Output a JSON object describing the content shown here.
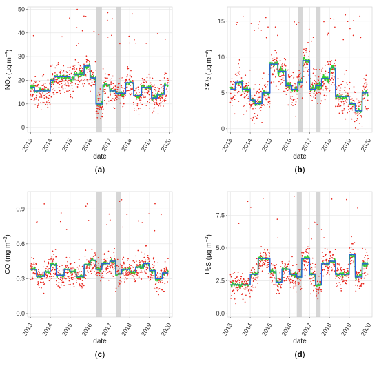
{
  "figure": {
    "background": "#ffffff",
    "colors": {
      "daily_points": "#e8231a",
      "fit_green": "#33cc33",
      "fit_blue": "#2b5fd9",
      "shaded_band": "#c8c8c8",
      "grid": "#e6e6e6"
    }
  },
  "chart_data": [
    {
      "panel": "a",
      "label_open": "(",
      "label_letter": "a",
      "label_close": ")",
      "type": "scatter",
      "xlabel": "date",
      "ylabel_main": "NO",
      "ylabel_sub": "x",
      "ylabel_unit": " (μg m",
      "ylabel_exp": "−3",
      "ylabel_close": ")",
      "xlim": [
        2012.85,
        2020.15
      ],
      "ylim": [
        -2,
        51
      ],
      "xticks": [
        2013,
        2014,
        2015,
        2016,
        2017,
        2018,
        2019,
        2020
      ],
      "yticks": [
        0,
        10,
        20,
        30,
        40,
        50
      ],
      "ytick_labels": [
        "0",
        "10",
        "20",
        "30",
        "40",
        "50"
      ],
      "shaded_periods": [
        [
          2016.3,
          2016.6
        ],
        [
          2017.3,
          2017.55
        ]
      ],
      "steps": [
        [
          2013.0,
          2013.2,
          17
        ],
        [
          2013.2,
          2014.0,
          15.5
        ],
        [
          2014.0,
          2014.2,
          20
        ],
        [
          2014.2,
          2015.0,
          21.5
        ],
        [
          2015.0,
          2015.2,
          20.5
        ],
        [
          2015.2,
          2015.7,
          22.5
        ],
        [
          2015.7,
          2016.0,
          26
        ],
        [
          2016.0,
          2016.3,
          21
        ],
        [
          2016.3,
          2016.65,
          10
        ],
        [
          2016.65,
          2017.0,
          18
        ],
        [
          2017.0,
          2017.3,
          15.5
        ],
        [
          2017.3,
          2017.8,
          14.5
        ],
        [
          2017.8,
          2018.2,
          19
        ],
        [
          2018.2,
          2018.6,
          13.5
        ],
        [
          2018.6,
          2019.1,
          17
        ],
        [
          2019.1,
          2019.4,
          12.5
        ],
        [
          2019.4,
          2019.75,
          14
        ],
        [
          2019.75,
          2019.95,
          18
        ]
      ],
      "scatter_params": {
        "spread": 6,
        "high_outliers": [
          35,
          50
        ],
        "count": 700,
        "seed": 11
      }
    },
    {
      "panel": "b",
      "label_open": "(",
      "label_letter": "b",
      "label_close": ")",
      "type": "scatter",
      "xlabel": "date",
      "ylabel_main": "SO",
      "ylabel_sub": "2",
      "ylabel_unit": " (μg m",
      "ylabel_exp": "−3",
      "ylabel_close": ")",
      "xlim": [
        2012.85,
        2020.15
      ],
      "ylim": [
        -0.5,
        17
      ],
      "xticks": [
        2013,
        2014,
        2015,
        2016,
        2017,
        2018,
        2019,
        2020
      ],
      "yticks": [
        0,
        5,
        10,
        15
      ],
      "ytick_labels": [
        "0",
        "5",
        "10",
        "15"
      ],
      "shaded_periods": [
        [
          2016.4,
          2016.65
        ],
        [
          2017.3,
          2017.55
        ]
      ],
      "steps": [
        [
          2013.0,
          2013.25,
          5.5
        ],
        [
          2013.25,
          2013.6,
          6.5
        ],
        [
          2013.6,
          2014.0,
          5.5
        ],
        [
          2014.0,
          2014.25,
          4.0
        ],
        [
          2014.25,
          2014.6,
          3.5
        ],
        [
          2014.6,
          2015.0,
          5.0
        ],
        [
          2015.0,
          2015.4,
          9.0
        ],
        [
          2015.4,
          2015.8,
          8.0
        ],
        [
          2015.8,
          2016.1,
          6.0
        ],
        [
          2016.1,
          2016.4,
          5.5
        ],
        [
          2016.4,
          2016.65,
          6.5
        ],
        [
          2016.65,
          2017.0,
          9.5
        ],
        [
          2017.0,
          2017.3,
          5.5
        ],
        [
          2017.3,
          2017.6,
          6.0
        ],
        [
          2017.6,
          2018.0,
          7.0
        ],
        [
          2018.0,
          2018.3,
          8.5
        ],
        [
          2018.3,
          2018.6,
          4.5
        ],
        [
          2018.6,
          2019.0,
          4.5
        ],
        [
          2019.0,
          2019.3,
          3.5
        ],
        [
          2019.3,
          2019.65,
          2.5
        ],
        [
          2019.65,
          2019.95,
          5.0
        ]
      ],
      "scatter_params": {
        "spread": 2.3,
        "high_outliers": [
          12,
          16
        ],
        "count": 700,
        "seed": 23
      }
    },
    {
      "panel": "c",
      "label_open": "(",
      "label_letter": "c",
      "label_close": ")",
      "type": "scatter",
      "xlabel": "date",
      "ylabel_main": "CO",
      "ylabel_sub": "",
      "ylabel_unit": " (mg m",
      "ylabel_exp": "−3",
      "ylabel_close": ")",
      "xlim": [
        2012.85,
        2020.15
      ],
      "ylim": [
        -0.03,
        1.05
      ],
      "xticks": [
        2013,
        2014,
        2015,
        2016,
        2017,
        2018,
        2019,
        2020
      ],
      "yticks": [
        0.0,
        0.3,
        0.6,
        0.9
      ],
      "ytick_labels": [
        "0.0",
        "0.3",
        "0.6",
        "0.9"
      ],
      "shaded_periods": [
        [
          2016.3,
          2016.6
        ],
        [
          2017.3,
          2017.55
        ]
      ],
      "steps": [
        [
          2013.0,
          2013.3,
          0.38
        ],
        [
          2013.3,
          2013.7,
          0.32
        ],
        [
          2013.7,
          2014.0,
          0.36
        ],
        [
          2014.0,
          2014.3,
          0.42
        ],
        [
          2014.3,
          2014.7,
          0.33
        ],
        [
          2014.7,
          2015.0,
          0.38
        ],
        [
          2015.0,
          2015.3,
          0.36
        ],
        [
          2015.3,
          2015.7,
          0.32
        ],
        [
          2015.7,
          2016.0,
          0.42
        ],
        [
          2016.0,
          2016.3,
          0.46
        ],
        [
          2016.3,
          2016.6,
          0.38
        ],
        [
          2016.6,
          2017.0,
          0.43
        ],
        [
          2017.0,
          2017.3,
          0.45
        ],
        [
          2017.3,
          2017.6,
          0.34
        ],
        [
          2017.6,
          2018.0,
          0.38
        ],
        [
          2018.0,
          2018.3,
          0.36
        ],
        [
          2018.3,
          2018.7,
          0.4
        ],
        [
          2018.7,
          2019.0,
          0.43
        ],
        [
          2019.0,
          2019.3,
          0.37
        ],
        [
          2019.3,
          2019.65,
          0.3
        ],
        [
          2019.65,
          2019.95,
          0.35
        ]
      ],
      "scatter_params": {
        "spread": 0.1,
        "high_outliers": [
          0.7,
          0.98
        ],
        "count": 700,
        "seed": 37
      }
    },
    {
      "panel": "d",
      "label_open": "(",
      "label_letter": "d",
      "label_close": ")",
      "type": "scatter",
      "xlabel": "date",
      "ylabel_main": "H",
      "ylabel_sub": "2",
      "ylabel_after_sub": "S",
      "ylabel_unit": " (μg m",
      "ylabel_exp": "−3",
      "ylabel_close": ")",
      "xlim": [
        2012.85,
        2020.15
      ],
      "ylim": [
        -0.25,
        9.3
      ],
      "xticks": [
        2013,
        2014,
        2015,
        2016,
        2017,
        2018,
        2019,
        2020
      ],
      "yticks": [
        0.0,
        2.5,
        5.0,
        7.5
      ],
      "ytick_labels": [
        "0.0",
        "2.5",
        "5.0",
        "7.5"
      ],
      "shaded_periods": [
        [
          2016.35,
          2016.6
        ],
        [
          2017.3,
          2017.55
        ]
      ],
      "steps": [
        [
          2013.0,
          2013.5,
          2.2
        ],
        [
          2013.5,
          2014.0,
          2.2
        ],
        [
          2014.0,
          2014.4,
          3.0
        ],
        [
          2014.4,
          2015.0,
          4.2
        ],
        [
          2015.0,
          2015.3,
          3.2
        ],
        [
          2015.3,
          2015.6,
          2.4
        ],
        [
          2015.6,
          2016.0,
          3.4
        ],
        [
          2016.0,
          2016.35,
          3.0
        ],
        [
          2016.35,
          2016.6,
          2.8
        ],
        [
          2016.6,
          2017.0,
          4.2
        ],
        [
          2017.0,
          2017.3,
          3.0
        ],
        [
          2017.3,
          2017.6,
          2.2
        ],
        [
          2017.6,
          2018.0,
          3.8
        ],
        [
          2018.0,
          2018.3,
          4.0
        ],
        [
          2018.3,
          2018.6,
          3.0
        ],
        [
          2018.6,
          2019.0,
          3.0
        ],
        [
          2019.0,
          2019.3,
          4.5
        ],
        [
          2019.3,
          2019.65,
          2.8
        ],
        [
          2019.65,
          2019.95,
          3.8
        ]
      ],
      "scatter_params": {
        "spread": 0.9,
        "high_outliers": [
          5.5,
          9
        ],
        "count": 700,
        "seed": 53
      }
    }
  ]
}
